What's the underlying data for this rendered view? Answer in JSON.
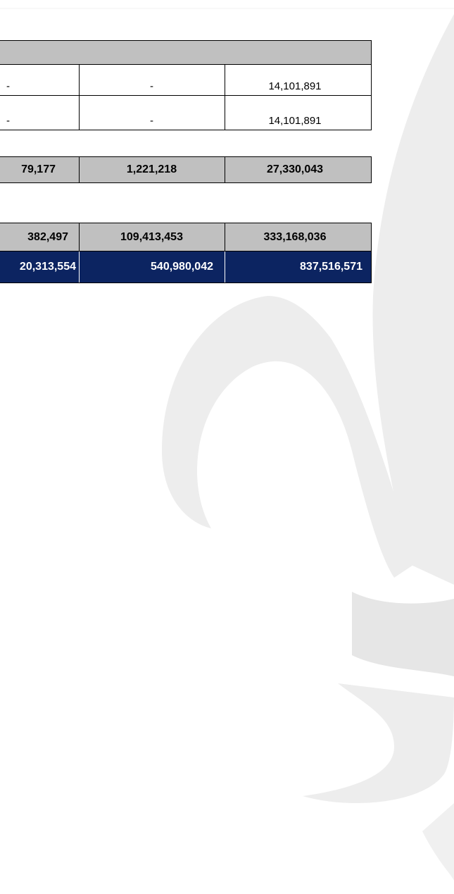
{
  "table": {
    "rows": [
      [
        "-",
        "-",
        "14,101,891"
      ],
      [
        "-",
        "-",
        "14,101,891"
      ],
      [
        "79,177",
        "1,221,218",
        "27,330,043"
      ],
      [
        "382,497",
        "109,413,453",
        "333,168,036"
      ],
      [
        "20,313,554",
        "540,980,042",
        "837,516,571"
      ]
    ]
  }
}
